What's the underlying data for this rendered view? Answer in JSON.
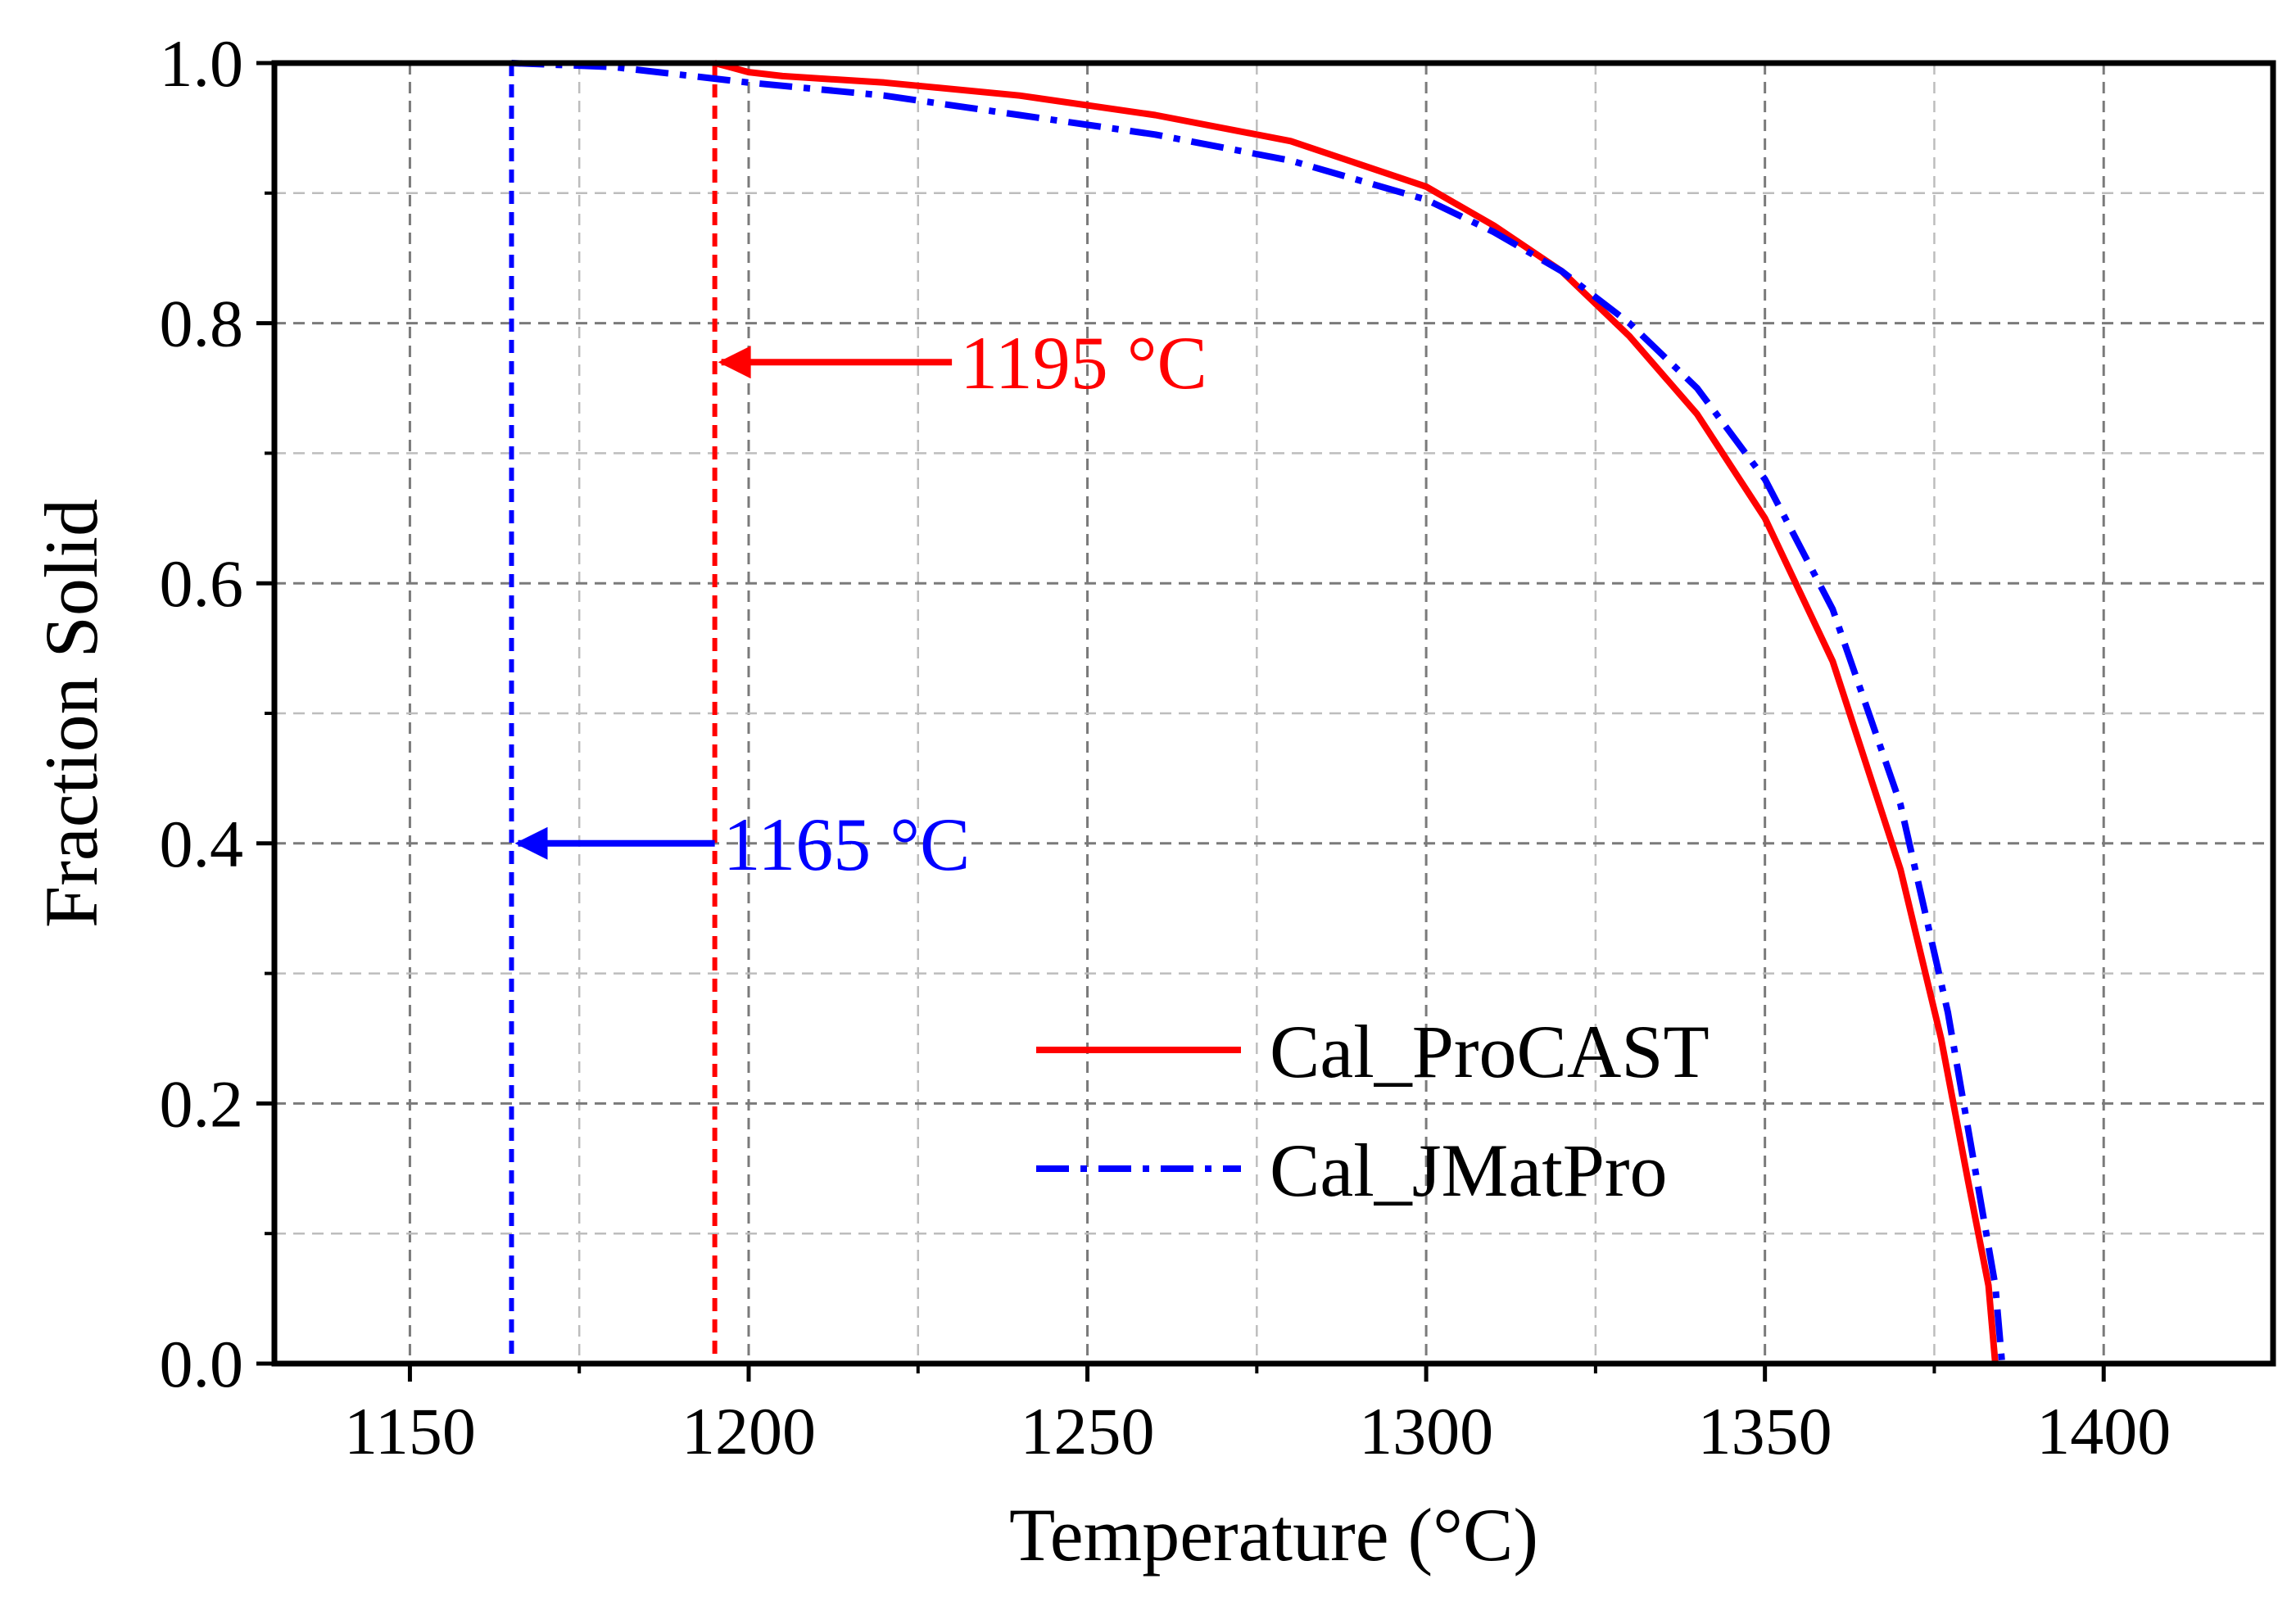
{
  "chart_data": {
    "type": "line",
    "title": "",
    "xlabel": "Temperature (°C)",
    "ylabel": "Fraction Solid",
    "xlim": [
      1130,
      1425
    ],
    "ylim": [
      0.0,
      1.0
    ],
    "x_ticks": [
      1150,
      1200,
      1250,
      1300,
      1350,
      1400
    ],
    "x_tick_labels": [
      "1150",
      "1200",
      "1250",
      "1300",
      "1350",
      "1400"
    ],
    "x_minor_ticks": [
      1175,
      1225,
      1275,
      1325,
      1375
    ],
    "y_ticks": [
      0.0,
      0.2,
      0.4,
      0.6,
      0.8,
      1.0
    ],
    "y_tick_labels": [
      "0.0",
      "0.2",
      "0.4",
      "0.6",
      "0.8",
      "1.0"
    ],
    "y_minor_ticks": [
      0.1,
      0.3,
      0.5,
      0.7,
      0.9
    ],
    "grid": true,
    "legend_position": "lower-right",
    "series": [
      {
        "name": "Cal_ProCAST",
        "color": "#ff0000",
        "style": "solid",
        "x": [
          1195,
          1200,
          1205,
          1220,
          1240,
          1260,
          1280,
          1300,
          1310,
          1320,
          1330,
          1340,
          1350,
          1360,
          1370,
          1376,
          1380,
          1383,
          1384
        ],
        "y": [
          1.0,
          0.993,
          0.99,
          0.985,
          0.975,
          0.96,
          0.94,
          0.905,
          0.875,
          0.84,
          0.79,
          0.73,
          0.65,
          0.54,
          0.38,
          0.25,
          0.14,
          0.06,
          0.0
        ]
      },
      {
        "name": "Cal_JMatPro",
        "color": "#0000ff",
        "style": "dashdot",
        "x": [
          1165,
          1180,
          1200,
          1220,
          1240,
          1260,
          1280,
          1300,
          1310,
          1320,
          1330,
          1340,
          1350,
          1360,
          1370,
          1377,
          1381,
          1384,
          1385
        ],
        "y": [
          1.0,
          0.997,
          0.985,
          0.975,
          0.96,
          0.945,
          0.925,
          0.895,
          0.87,
          0.84,
          0.8,
          0.75,
          0.68,
          0.58,
          0.43,
          0.27,
          0.15,
          0.06,
          0.0
        ]
      }
    ],
    "vertical_lines": [
      {
        "x": 1165,
        "color": "#0000ff",
        "style": "dashed"
      },
      {
        "x": 1195,
        "color": "#ff0000",
        "style": "dashed"
      }
    ],
    "annotations": [
      {
        "text": "1195 °C",
        "color": "#ff0000",
        "arrow_to": [
          1195,
          0.77
        ],
        "arrow_from": [
          1230,
          0.77
        ]
      },
      {
        "text": "1165 °C",
        "color": "#0000ff",
        "arrow_to": [
          1165,
          0.4
        ],
        "arrow_from": [
          1195,
          0.4
        ]
      }
    ]
  }
}
